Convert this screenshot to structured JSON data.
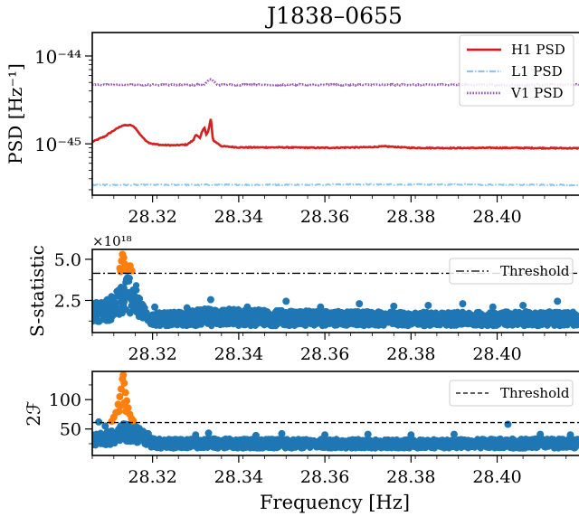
{
  "figure": {
    "title": "J1838–0655",
    "xlabel": "Frequency [Hz]"
  },
  "chart_data": [
    {
      "type": "line",
      "panel": "psd",
      "ylabel": "PSD [Hz⁻¹]",
      "yscale": "log",
      "xlim": [
        28.306,
        28.419
      ],
      "ylim": [
        2.6e-46,
        1.85e-44
      ],
      "xticks": [
        28.32,
        28.34,
        28.36,
        28.38,
        28.4
      ],
      "xtick_labels": [
        "28.32",
        "28.34",
        "28.36",
        "28.38",
        "28.40"
      ],
      "ytick_labels": [
        "10⁻⁴⁴",
        "10⁻⁴⁵"
      ],
      "legend_position": "top-right",
      "grid": false,
      "series": [
        {
          "name": "H1 PSD",
          "color": "#d62020",
          "style": "solid",
          "x": [
            28.306,
            28.309,
            28.311,
            28.313,
            28.315,
            28.316,
            28.3168,
            28.318,
            28.319,
            28.32,
            28.322,
            28.325,
            28.328,
            28.3295,
            28.33,
            28.3305,
            28.331,
            28.3315,
            28.332,
            28.3325,
            28.333,
            28.3335,
            28.334,
            28.336,
            28.34,
            28.35,
            28.36,
            28.37,
            28.374,
            28.38,
            28.39,
            28.4,
            28.41,
            28.419
          ],
          "values": [
            1.05e-45,
            1.22e-45,
            1.42e-45,
            1.62e-45,
            1.63e-45,
            1.52e-45,
            1.33e-45,
            1.14e-45,
            1.04e-45,
            1e-45,
            9.7e-46,
            9.6e-46,
            9.8e-46,
            1.1e-45,
            1.28e-45,
            1.22e-45,
            1.15e-45,
            1.38e-45,
            1.55e-45,
            1.25e-45,
            1.42e-45,
            1.92e-45,
            1.1e-45,
            9.4e-46,
            9.1e-46,
            9.1e-46,
            9e-46,
            9.15e-46,
            9.35e-46,
            9e-46,
            8.95e-46,
            9e-46,
            8.95e-46,
            8.9e-46
          ]
        },
        {
          "name": "L1 PSD",
          "color": "#8ec5ee",
          "style": "dashdot",
          "x": [
            28.306,
            28.35,
            28.37,
            28.419
          ],
          "values": [
            3.4e-46,
            3.42e-46,
            3.45e-46,
            3.4e-46
          ]
        },
        {
          "name": "V1 PSD",
          "color": "#9b59b6",
          "style": "dotted",
          "x": [
            28.306,
            28.332,
            28.3334,
            28.335,
            28.419
          ],
          "values": [
            4.7e-45,
            4.7e-45,
            5.5e-45,
            4.7e-45,
            4.7e-45
          ]
        }
      ]
    },
    {
      "type": "scatter",
      "panel": "s-statistic",
      "ylabel": "S-statistic",
      "scale_label": "×10¹⁸",
      "ytick_labels": [
        "2.5",
        "5.0"
      ],
      "yticks": [
        2.5,
        5.0
      ],
      "ylim": [
        0.55,
        5.6
      ],
      "xlim": [
        28.306,
        28.419
      ],
      "threshold": 4.15,
      "threshold_label": "Threshold",
      "threshold_style": "dashdot",
      "legend_position": "top-right",
      "colors": {
        "below": "#1f77b4",
        "above": "#ff7f0e"
      },
      "envelope": {
        "x": [
          28.306,
          28.309,
          28.311,
          28.3125,
          28.3135,
          28.3145,
          28.316,
          28.3175,
          28.319,
          28.32,
          28.325,
          28.334,
          28.35,
          28.365,
          28.38,
          28.395,
          28.405,
          28.419
        ],
        "upper": [
          2.4,
          2.5,
          2.9,
          3.4,
          4.0,
          4.3,
          3.5,
          2.4,
          1.95,
          1.75,
          1.8,
          2.05,
          1.9,
          1.85,
          1.8,
          1.8,
          1.85,
          1.8
        ],
        "lower": [
          1.2,
          1.2,
          1.3,
          1.5,
          1.7,
          1.7,
          1.5,
          1.3,
          1.2,
          0.95,
          0.95,
          0.95,
          0.95,
          0.95,
          0.95,
          0.95,
          0.95,
          0.95
        ]
      },
      "above_points": [
        [
          28.3124,
          4.45
        ],
        [
          28.3128,
          4.9
        ],
        [
          28.313,
          5.3
        ],
        [
          28.3133,
          5.1
        ],
        [
          28.3136,
          4.7
        ],
        [
          28.314,
          4.5
        ],
        [
          28.3144,
          4.4
        ],
        [
          28.3148,
          4.6
        ],
        [
          28.3152,
          4.3
        ],
        [
          28.3126,
          4.25
        ],
        [
          28.3138,
          4.3
        ]
      ],
      "scattered_points": [
        [
          28.3095,
          2.55
        ],
        [
          28.3205,
          2.1
        ],
        [
          28.328,
          2.05
        ],
        [
          28.3335,
          2.55
        ],
        [
          28.342,
          2.1
        ],
        [
          28.351,
          2.45
        ],
        [
          28.359,
          2.1
        ],
        [
          28.368,
          2.3
        ],
        [
          28.376,
          2.15
        ],
        [
          28.384,
          2.2
        ],
        [
          28.392,
          2.3
        ],
        [
          28.399,
          2.1
        ],
        [
          28.406,
          2.2
        ],
        [
          28.414,
          2.45
        ]
      ]
    },
    {
      "type": "scatter",
      "panel": "2F",
      "ylabel": "2ℱ",
      "ytick_labels": [
        "50",
        "100"
      ],
      "yticks": [
        50,
        100
      ],
      "ylim": [
        5,
        148
      ],
      "xlim": [
        28.306,
        28.419
      ],
      "threshold": 61,
      "threshold_label": "Threshold",
      "threshold_style": "dashed",
      "legend_position": "top-right",
      "colors": {
        "below": "#1f77b4",
        "above": "#ff7f0e"
      },
      "envelope": {
        "x": [
          28.306,
          28.309,
          28.311,
          28.3125,
          28.3135,
          28.3145,
          28.316,
          28.3175,
          28.319,
          28.32,
          28.325,
          28.334,
          28.35,
          28.365,
          28.38,
          28.395,
          28.405,
          28.419
        ],
        "upper": [
          42,
          44,
          50,
          56,
          60,
          60,
          58,
          50,
          42,
          34,
          33,
          34,
          33,
          33,
          32,
          33,
          34,
          33
        ],
        "lower": [
          22,
          22,
          24,
          26,
          28,
          28,
          26,
          24,
          22,
          17,
          17,
          17,
          17,
          17,
          17,
          17,
          17,
          17
        ]
      },
      "above_points": [
        [
          28.3105,
          63
        ],
        [
          28.311,
          70
        ],
        [
          28.3115,
          78
        ],
        [
          28.312,
          92
        ],
        [
          28.3124,
          105
        ],
        [
          28.3127,
          118
        ],
        [
          28.313,
          135
        ],
        [
          28.3132,
          142
        ],
        [
          28.3134,
          128
        ],
        [
          28.3137,
          112
        ],
        [
          28.314,
          98
        ],
        [
          28.3143,
          86
        ],
        [
          28.3147,
          75
        ],
        [
          28.3151,
          68
        ],
        [
          28.3155,
          64
        ],
        [
          28.3122,
          80
        ],
        [
          28.3138,
          80
        ],
        [
          28.3128,
          90
        ],
        [
          28.3135,
          95
        ]
      ],
      "scattered_points": [
        [
          28.3075,
          62
        ],
        [
          28.309,
          55
        ],
        [
          28.319,
          42
        ],
        [
          28.33,
          40
        ],
        [
          28.333,
          43
        ],
        [
          28.344,
          39
        ],
        [
          28.35,
          42
        ],
        [
          28.36,
          40
        ],
        [
          28.37,
          41
        ],
        [
          28.38,
          40
        ],
        [
          28.39,
          41
        ],
        [
          28.4025,
          58
        ],
        [
          28.41,
          41
        ],
        [
          28.417,
          40
        ]
      ]
    }
  ]
}
